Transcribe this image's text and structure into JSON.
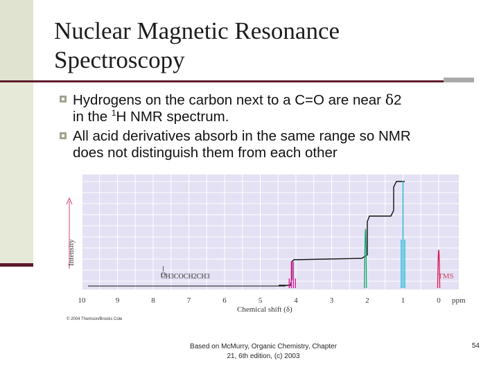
{
  "slide": {
    "title_line1": "Nuclear Magnetic Resonance",
    "title_line2": "Spectroscopy",
    "bullets": [
      {
        "pre": "Hydrogens on the carbon next to a C=O  are near ",
        "delta": "δ",
        "post": "2"
      },
      {
        "pre": "in the ",
        "sup": "1",
        "post": "H NMR spectrum."
      },
      {
        "pre": "All acid derivatives absorb in the same range so NMR"
      },
      {
        "pre": "does not distinguish them from each other"
      }
    ],
    "footer_citation_line1": "Based on McMurry, Organic Chemistry, Chapter",
    "footer_citation_line2": "21, 6th edition, (c) 2003",
    "page_number": "54"
  },
  "spectrum": {
    "molecule_label": "CH3COCH2CH3",
    "carbonyl_o": "O",
    "tms_label": "TMS",
    "intensity_label": "Intensity",
    "xaxis_label": "Chemical shift (δ)",
    "ppm_label": "ppm",
    "copyright": "© 2004 Thomson/Brooks Cole",
    "ticks": [
      "10",
      "9",
      "8",
      "7",
      "6",
      "5",
      "4",
      "3",
      "2",
      "1",
      "0"
    ],
    "colors": {
      "background": "#e3e1f3",
      "grid": "#ffffff",
      "quartet": "#e0199a",
      "singlet": "#16a572",
      "triplet": "#20b9d6",
      "tms": "#d81e5b"
    },
    "peaks": [
      {
        "name": "quartet",
        "ppm": 4.1,
        "multiplicity": "q"
      },
      {
        "name": "singlet",
        "ppm": 2.05,
        "multiplicity": "s"
      },
      {
        "name": "triplet",
        "ppm": 1.0,
        "multiplicity": "t"
      },
      {
        "name": "tms",
        "ppm": 0.0,
        "multiplicity": "s"
      }
    ]
  }
}
